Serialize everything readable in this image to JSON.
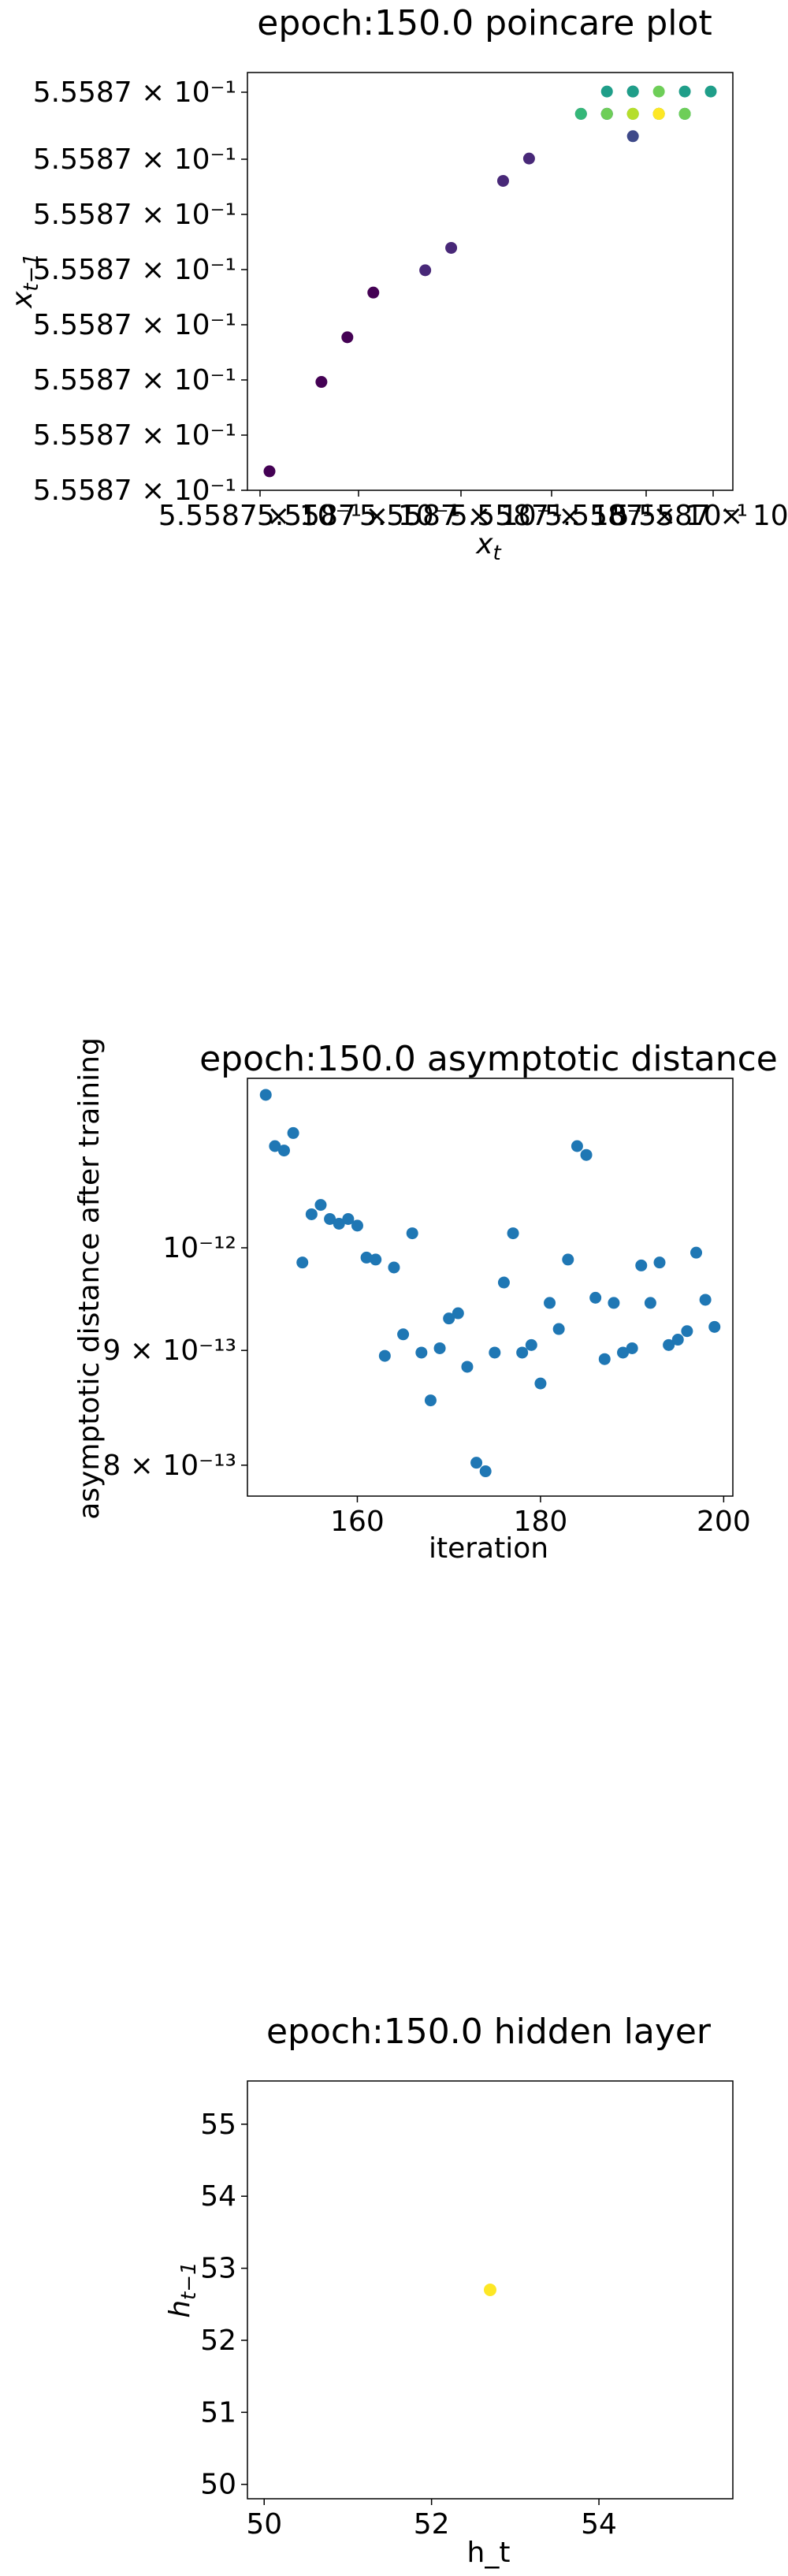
{
  "figure": {
    "panels": [
      {
        "id": "poincare",
        "title": "epoch:150.0 poincare plot",
        "xlabel": "x_t",
        "ylabel": "x_{t−1}",
        "xtick_text": "5.5587 × 10⁻¹",
        "ytick_text": "5.5587 × 10⁻¹"
      },
      {
        "id": "distance",
        "title": "epoch:150.0 asymptotic distance",
        "xlabel": "iteration",
        "ylabel": "asymptotic distance after training",
        "xticks": [
          "160",
          "180",
          "200"
        ],
        "yticks": [
          "8 × 10⁻¹³",
          "9 × 10⁻¹³",
          "10⁻¹²"
        ]
      },
      {
        "id": "hidden",
        "title": "epoch:150.0 hidden layer",
        "xlabel": "h_t",
        "ylabel": "h_{t−1}",
        "xticks": [
          "50",
          "52",
          "54"
        ],
        "yticks": [
          "50",
          "51",
          "52",
          "53",
          "54",
          "55"
        ]
      }
    ]
  },
  "colors": {
    "scatter_blue": "#1f77b4",
    "viridis": [
      "#440154",
      "#482878",
      "#3e4989",
      "#31688e",
      "#26828e",
      "#1f9e89",
      "#35b779",
      "#6ece58",
      "#b5de2b",
      "#fde725"
    ],
    "hidden_point": "#fde725"
  },
  "chart_data": [
    {
      "type": "scatter",
      "title": "epoch:150.0 poincare plot",
      "xlabel": "x_t",
      "ylabel": "x_{t−1}",
      "x_scale": "log",
      "y_scale": "log",
      "note_ticks": "all tick labels read 5.5587 × 10^-1",
      "color_map": "viridis",
      "points": [
        {
          "x": 0.55587,
          "y": 0.55587,
          "c": 0.0
        },
        {
          "x": 0.5558702,
          "y": 0.5558704,
          "c": 0.02
        },
        {
          "x": 0.5558703,
          "y": 0.5558706,
          "c": 0.04
        },
        {
          "x": 0.5558704,
          "y": 0.5558708,
          "c": 0.05
        },
        {
          "x": 0.5558706,
          "y": 0.5558709,
          "c": 0.07
        },
        {
          "x": 0.5558707,
          "y": 0.555871,
          "c": 0.09
        },
        {
          "x": 0.5558709,
          "y": 0.5558713,
          "c": 0.11
        },
        {
          "x": 0.555871,
          "y": 0.5558714,
          "c": 0.12
        },
        {
          "x": 0.5558712,
          "y": 0.5558716,
          "c": 0.17
        },
        {
          "x": 0.5558714,
          "y": 0.5558715,
          "c": 0.22
        },
        {
          "x": 0.5558713,
          "y": 0.5558716,
          "c": 0.27
        },
        {
          "x": 0.5558715,
          "y": 0.5558716,
          "c": 0.3
        },
        {
          "x": 0.5558714,
          "y": 0.5558717,
          "c": 0.33
        },
        {
          "x": 0.5558713,
          "y": 0.5558716,
          "c": 0.36
        },
        {
          "x": 0.5558714,
          "y": 0.5558716,
          "c": 0.4
        },
        {
          "x": 0.5558716,
          "y": 0.5558716,
          "c": 0.43
        },
        {
          "x": 0.5558715,
          "y": 0.5558716,
          "c": 0.46
        },
        {
          "x": 0.5558713,
          "y": 0.5558717,
          "c": 0.5
        },
        {
          "x": 0.5558717,
          "y": 0.5558717,
          "c": 0.53
        },
        {
          "x": 0.5558716,
          "y": 0.5558717,
          "c": 0.56
        },
        {
          "x": 0.5558714,
          "y": 0.5558717,
          "c": 0.6
        },
        {
          "x": 0.5558716,
          "y": 0.5558716,
          "c": 0.63
        },
        {
          "x": 0.5558712,
          "y": 0.5558716,
          "c": 0.67
        },
        {
          "x": 0.5558715,
          "y": 0.5558716,
          "c": 0.7
        },
        {
          "x": 0.5558713,
          "y": 0.5558716,
          "c": 0.74
        },
        {
          "x": 0.5558715,
          "y": 0.5558717,
          "c": 0.78
        },
        {
          "x": 0.5558716,
          "y": 0.5558716,
          "c": 0.82
        },
        {
          "x": 0.5558714,
          "y": 0.5558716,
          "c": 0.86
        },
        {
          "x": 0.5558715,
          "y": 0.5558716,
          "c": 0.9
        },
        {
          "x": 0.5558714,
          "y": 0.5558716,
          "c": 0.94
        },
        {
          "x": 0.5558715,
          "y": 0.5558716,
          "c": 0.97
        },
        {
          "x": 0.5558715,
          "y": 0.5558716,
          "c": 1.0
        }
      ]
    },
    {
      "type": "scatter",
      "title": "epoch:150.0 asymptotic distance",
      "xlabel": "iteration",
      "ylabel": "asymptotic distance after training",
      "y_scale": "log",
      "xlim": [
        148,
        201
      ],
      "ylim": [
        7.75e-13,
        1.19e-12
      ],
      "x": [
        150,
        151,
        152,
        153,
        154,
        155,
        156,
        157,
        158,
        159,
        160,
        161,
        162,
        163,
        164,
        165,
        166,
        167,
        168,
        169,
        170,
        171,
        172,
        173,
        174,
        175,
        176,
        177,
        178,
        179,
        180,
        181,
        182,
        183,
        184,
        185,
        186,
        187,
        188,
        189,
        190,
        191,
        192,
        193,
        194,
        195,
        196,
        197,
        198,
        199
      ],
      "y": [
        1.17e-12,
        1.11e-12,
        1.105e-12,
        1.125e-12,
        9.85e-13,
        1.035e-12,
        1.045e-12,
        1.03e-12,
        1.025e-12,
        1.03e-12,
        1.023e-12,
        9.9e-13,
        9.88e-13,
        8.95e-13,
        9.8e-13,
        9.15e-13,
        1.015e-12,
        8.98e-13,
        8.55e-13,
        9.02e-13,
        9.3e-13,
        9.35e-13,
        8.85e-13,
        8.02e-13,
        7.95e-13,
        8.98e-13,
        9.65e-13,
        1.015e-12,
        8.98e-13,
        9.05e-13,
        8.7e-13,
        9.45e-13,
        9.2e-13,
        9.88e-13,
        1.11e-12,
        1.1e-12,
        9.5e-13,
        8.92e-13,
        9.45e-13,
        8.98e-13,
        9.02e-13,
        9.82e-13,
        9.45e-13,
        9.85e-13,
        9.05e-13,
        9.1e-13,
        9.18e-13,
        9.95e-13,
        9.48e-13,
        9.22e-13
      ]
    },
    {
      "type": "scatter",
      "title": "epoch:150.0 hidden layer",
      "xlabel": "h_t",
      "ylabel": "h_{t−1}",
      "xlim": [
        49.8,
        55.6
      ],
      "ylim": [
        49.8,
        55.6
      ],
      "points": [
        {
          "x": 52.7,
          "y": 52.7
        }
      ]
    }
  ]
}
